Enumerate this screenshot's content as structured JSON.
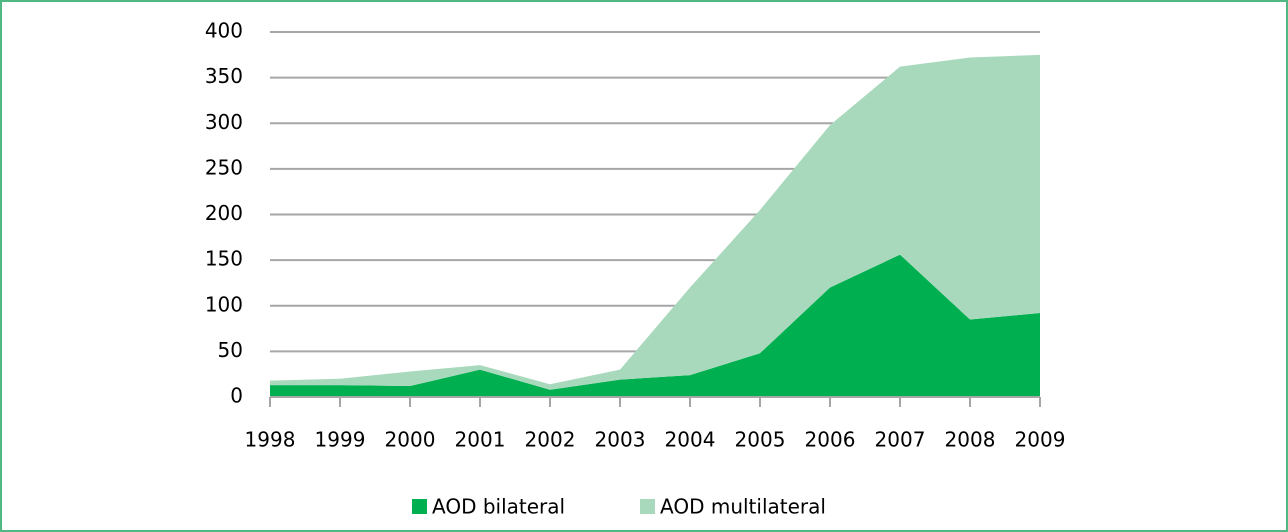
{
  "chart_data": {
    "type": "stacked_area",
    "categories": [
      "1998",
      "1999",
      "2000",
      "2001",
      "2002",
      "2003",
      "2004",
      "2005",
      "2006",
      "2007",
      "2008",
      "2009"
    ],
    "series": [
      {
        "name": "AOD bilateral",
        "color": "#00b050",
        "values": [
          13,
          13,
          12,
          30,
          8,
          19,
          24,
          48,
          120,
          156,
          85,
          92
        ]
      },
      {
        "name": "AOD multilateral",
        "color": "#a9d9bd",
        "values": [
          5,
          7,
          16,
          5,
          6,
          11,
          96,
          157,
          178,
          206,
          287,
          283
        ]
      }
    ],
    "ylim": [
      0,
      400
    ],
    "yticks": [
      0,
      50,
      100,
      150,
      200,
      250,
      300,
      350,
      400
    ],
    "grid": true,
    "legend": "bottom"
  }
}
